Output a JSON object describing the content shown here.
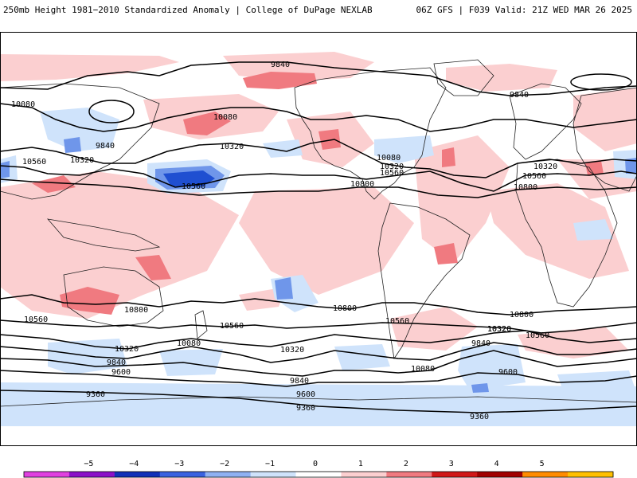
{
  "header": {
    "left": "250mb Height 1981−2010 Standardized Anomaly | College of DuPage NEXLAB",
    "right": "06Z GFS | F039 Valid: 21Z WED MAR 26 2025"
  },
  "colors": {
    "ocean": "#ffffff",
    "coast": "#222222",
    "contour": "#000000",
    "pos1": "#fbcfd0",
    "pos2": "#f07a80",
    "neg1": "#cfe3fb",
    "neg2": "#6f96ea",
    "neg3": "#1f4fd1"
  },
  "colorbar": {
    "ticks": [
      "−5",
      "−4",
      "−3",
      "−2",
      "−1",
      "0",
      "1",
      "2",
      "3",
      "4",
      "5"
    ],
    "colors": [
      "#e040e0",
      "#8a10c8",
      "#1030b8",
      "#3a62e0",
      "#8fb1f2",
      "#cfe3fb",
      "#ffffff",
      "#fbcfd0",
      "#f07a80",
      "#d01818",
      "#a00000",
      "#ff8c00",
      "#ffc000"
    ]
  },
  "contour_labels": [
    {
      "text": "9840"
    },
    {
      "text": "10080"
    },
    {
      "text": "10080"
    },
    {
      "text": "9840"
    },
    {
      "text": "10320"
    },
    {
      "text": "10560"
    },
    {
      "text": "10320"
    },
    {
      "text": "10560"
    },
    {
      "text": "10080"
    },
    {
      "text": "10320"
    },
    {
      "text": "10560"
    },
    {
      "text": "10800"
    },
    {
      "text": "9840"
    },
    {
      "text": "10320"
    },
    {
      "text": "10560"
    },
    {
      "text": "10800"
    },
    {
      "text": "10800"
    },
    {
      "text": "10560"
    },
    {
      "text": "10800"
    },
    {
      "text": "10560"
    },
    {
      "text": "10800"
    },
    {
      "text": "10560"
    },
    {
      "text": "10320"
    },
    {
      "text": "10080"
    },
    {
      "text": "10320"
    },
    {
      "text": "9840"
    },
    {
      "text": "9600"
    },
    {
      "text": "10320"
    },
    {
      "text": "9840"
    },
    {
      "text": "10560"
    },
    {
      "text": "10320"
    },
    {
      "text": "9840"
    },
    {
      "text": "10080"
    },
    {
      "text": "9600"
    },
    {
      "text": "9600"
    },
    {
      "text": "9360"
    },
    {
      "text": "9360"
    },
    {
      "text": "9360"
    }
  ]
}
